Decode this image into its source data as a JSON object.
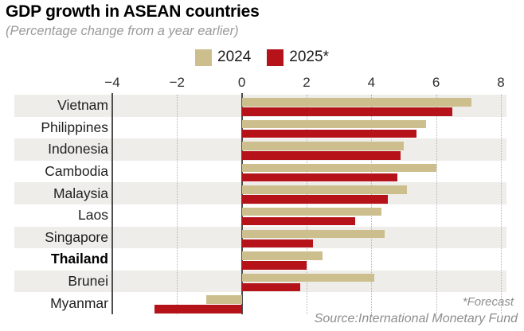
{
  "header": {
    "title": "GDP growth in ASEAN countries",
    "subtitle": "(Percentage change from a year earlier)"
  },
  "legend": [
    {
      "label": "2024",
      "color": "#cdbf8d"
    },
    {
      "label": "2025*",
      "color": "#b5121a"
    }
  ],
  "chart_data": {
    "type": "bar",
    "orientation": "horizontal",
    "title": "GDP growth in ASEAN countries",
    "xlabel": "",
    "ylabel": "",
    "xlim": [
      -4,
      8
    ],
    "x_ticks": [
      -4,
      -2,
      0,
      2,
      4,
      6,
      8
    ],
    "grid": "dotted vertical gridlines at ticks; solid dark lines at -4 and 0",
    "legend_position": "top-center",
    "row_band_color": "#eeedea",
    "categories": [
      "Vietnam",
      "Philippines",
      "Indonesia",
      "Cambodia",
      "Malaysia",
      "Laos",
      "Singapore",
      "Thailand",
      "Brunei",
      "Myanmar"
    ],
    "highlighted_category": "Thailand",
    "series": [
      {
        "name": "2024",
        "color": "#cdbf8d",
        "values": [
          7.1,
          5.7,
          5.0,
          6.0,
          5.1,
          4.3,
          4.4,
          2.5,
          4.1,
          -1.1
        ]
      },
      {
        "name": "2025*",
        "color": "#b5121a",
        "values": [
          6.5,
          5.4,
          4.9,
          4.8,
          4.5,
          3.5,
          2.2,
          2.0,
          1.8,
          -2.7
        ]
      }
    ]
  },
  "footer": {
    "forecast_note": "*Forecast",
    "source": "Source:International Monetary Fund"
  }
}
